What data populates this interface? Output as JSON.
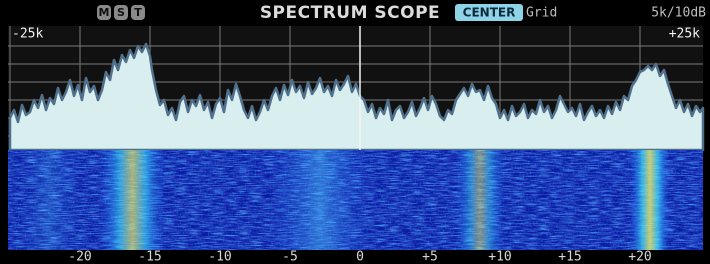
{
  "header": {
    "indicators": [
      "M",
      "S",
      "T"
    ],
    "title": "SPECTRUM SCOPE",
    "mode": "CENTER",
    "grid": "Grid",
    "scale": "5k/10dB"
  },
  "scope": {
    "span_left": "-25k",
    "span_right": "+25k",
    "axis_labels": [
      "-20",
      "-15",
      "-10",
      "-5",
      "0",
      "+5",
      "+10",
      "+15",
      "+20"
    ]
  }
}
